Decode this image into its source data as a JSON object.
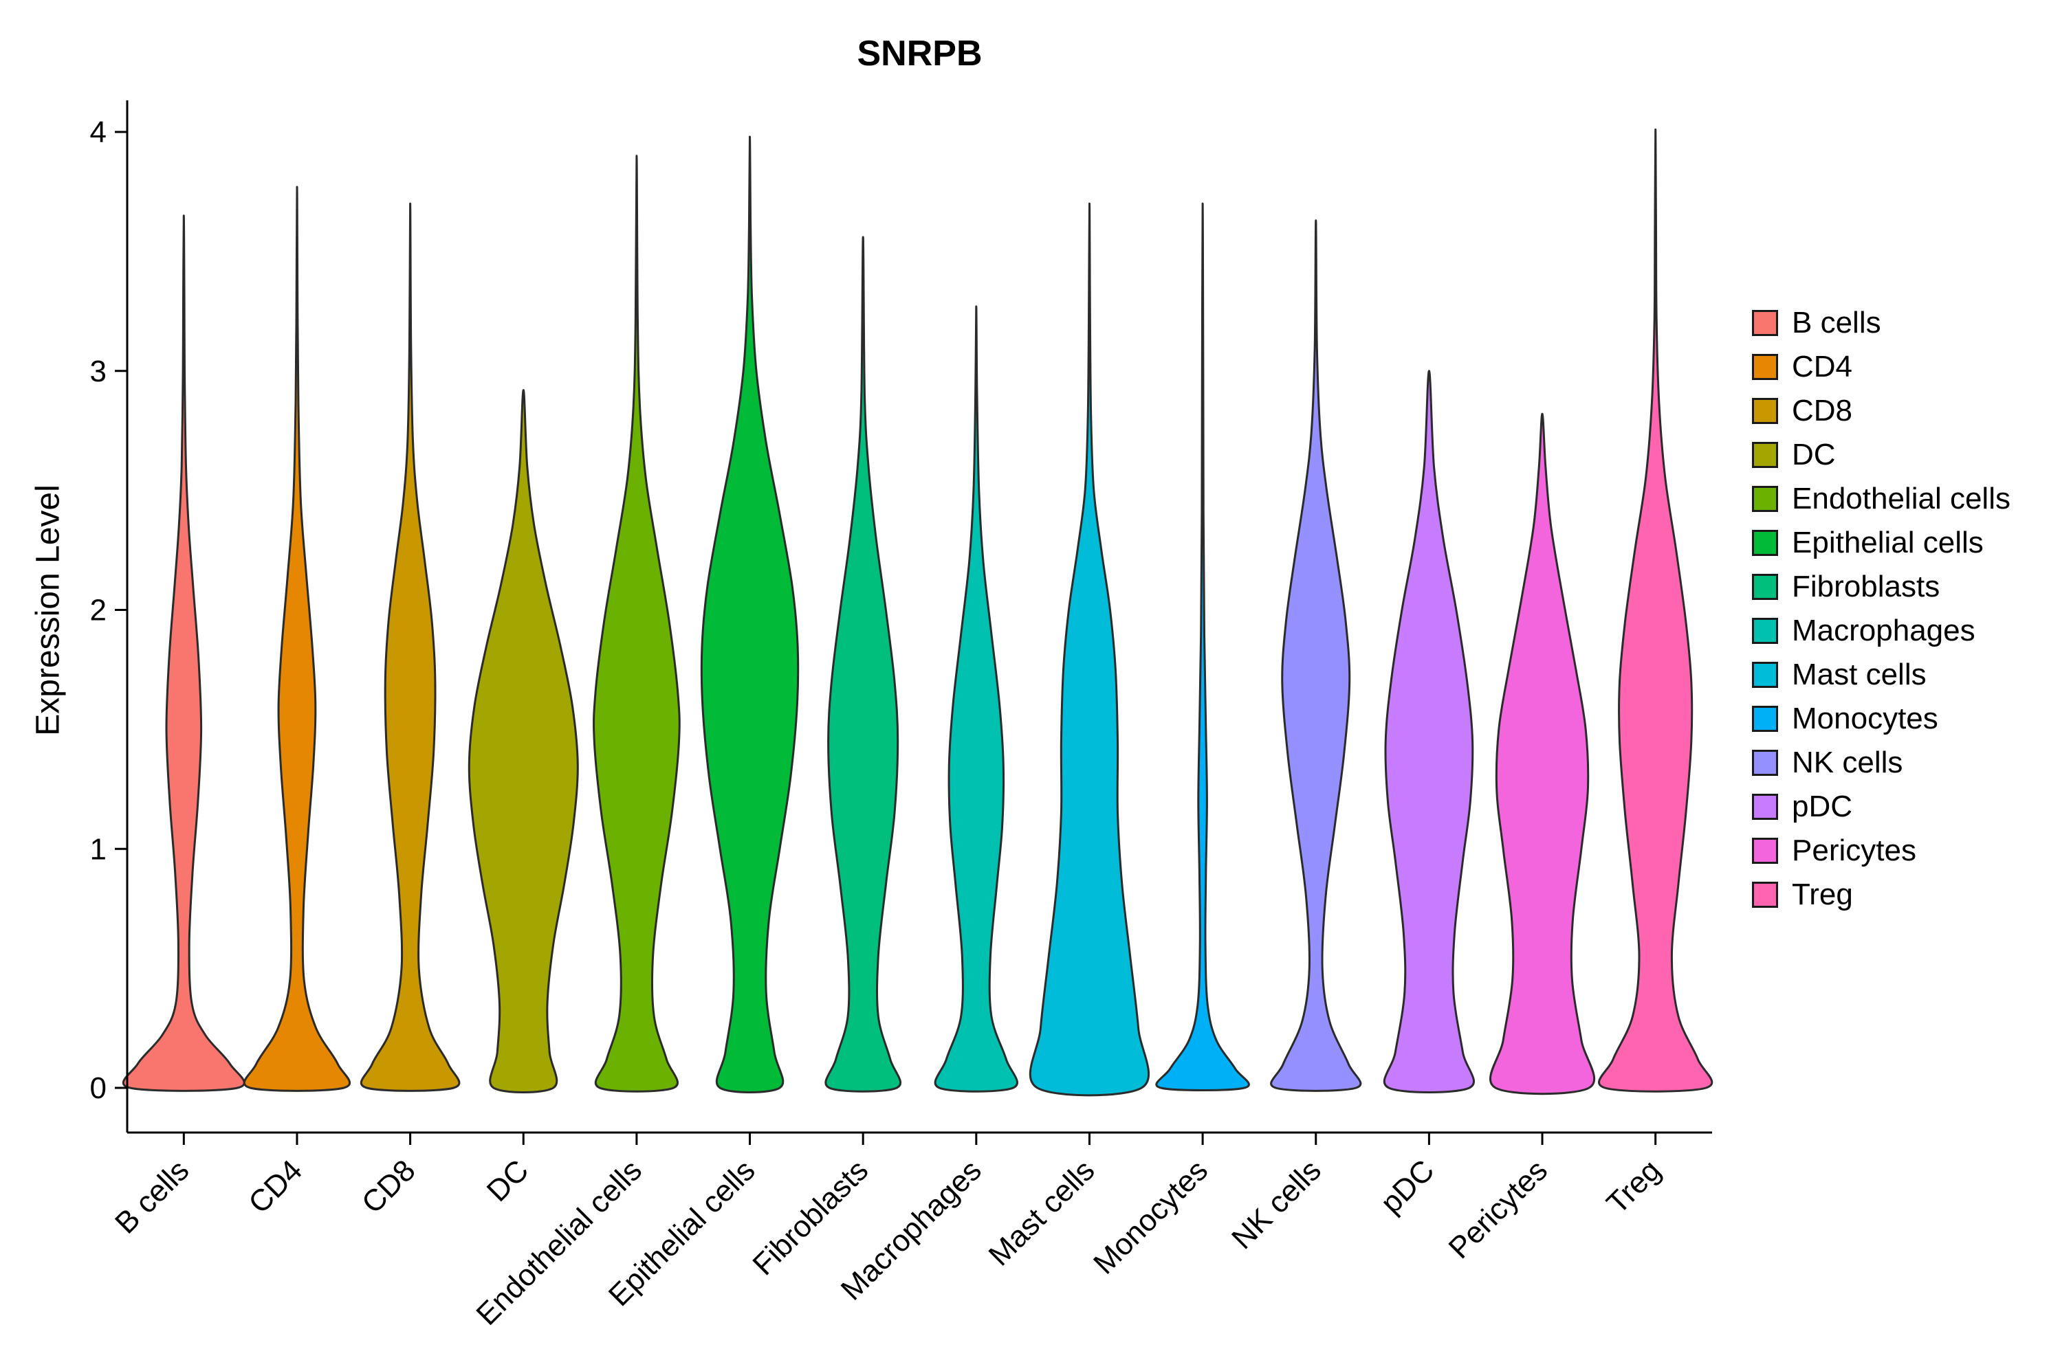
{
  "page": {
    "background": "#ffffff"
  },
  "chart_data": {
    "type": "violin",
    "title": "SNRPB",
    "xlabel": "",
    "ylabel": "Expression Level",
    "ylim": [
      0,
      4
    ],
    "yticks": [
      0,
      1,
      2,
      3,
      4
    ],
    "grid": false,
    "legend_position": "right",
    "outline_color": "#2b2b2b",
    "categories": [
      "B cells",
      "CD4",
      "CD8",
      "DC",
      "Endothelial cells",
      "Epithelial cells",
      "Fibroblasts",
      "Macrophages",
      "Mast cells",
      "Monocytes",
      "NK cells",
      "pDC",
      "Pericytes",
      "Treg"
    ],
    "colors": [
      "#F8766D",
      "#E58700",
      "#C99800",
      "#A3A500",
      "#6BB100",
      "#00BA38",
      "#00BF7D",
      "#00C0AF",
      "#00BCD8",
      "#00B0F6",
      "#9590FF",
      "#C77CFF",
      "#F265DC",
      "#FF64B0"
    ],
    "series": [
      {
        "name": "B cells",
        "color": "#F8766D",
        "max_expression": 3.65,
        "profile": [
          [
            0,
            0.99
          ],
          [
            0.1,
            0.85
          ],
          [
            0.22,
            0.4
          ],
          [
            0.35,
            0.15
          ],
          [
            0.6,
            0.1
          ],
          [
            0.9,
            0.16
          ],
          [
            1.2,
            0.26
          ],
          [
            1.5,
            0.32
          ],
          [
            1.8,
            0.27
          ],
          [
            2.1,
            0.17
          ],
          [
            2.35,
            0.09
          ],
          [
            2.6,
            0.04
          ],
          [
            3.0,
            0.015
          ],
          [
            3.3,
            0.01
          ],
          [
            3.65,
            0
          ]
        ]
      },
      {
        "name": "CD4",
        "color": "#E58700",
        "max_expression": 3.77,
        "profile": [
          [
            0,
            0.86
          ],
          [
            0.1,
            0.75
          ],
          [
            0.25,
            0.35
          ],
          [
            0.45,
            0.13
          ],
          [
            0.75,
            0.12
          ],
          [
            1.05,
            0.2
          ],
          [
            1.35,
            0.3
          ],
          [
            1.6,
            0.34
          ],
          [
            1.85,
            0.28
          ],
          [
            2.15,
            0.17
          ],
          [
            2.45,
            0.07
          ],
          [
            2.8,
            0.03
          ],
          [
            3.2,
            0.012
          ],
          [
            3.77,
            0
          ]
        ]
      },
      {
        "name": "CD8",
        "color": "#C99800",
        "max_expression": 3.7,
        "profile": [
          [
            0,
            0.8
          ],
          [
            0.1,
            0.7
          ],
          [
            0.25,
            0.35
          ],
          [
            0.5,
            0.16
          ],
          [
            0.8,
            0.2
          ],
          [
            1.1,
            0.32
          ],
          [
            1.4,
            0.43
          ],
          [
            1.7,
            0.46
          ],
          [
            1.95,
            0.4
          ],
          [
            2.2,
            0.27
          ],
          [
            2.45,
            0.13
          ],
          [
            2.7,
            0.05
          ],
          [
            3.1,
            0.015
          ],
          [
            3.7,
            0
          ]
        ]
      },
      {
        "name": "DC",
        "color": "#A3A500",
        "max_expression": 2.92,
        "profile": [
          [
            0,
            0.55
          ],
          [
            0.15,
            0.48
          ],
          [
            0.35,
            0.44
          ],
          [
            0.6,
            0.55
          ],
          [
            0.85,
            0.75
          ],
          [
            1.1,
            0.92
          ],
          [
            1.35,
            1.0
          ],
          [
            1.6,
            0.9
          ],
          [
            1.85,
            0.68
          ],
          [
            2.1,
            0.42
          ],
          [
            2.35,
            0.2
          ],
          [
            2.6,
            0.07
          ],
          [
            2.92,
            0
          ]
        ]
      },
      {
        "name": "Endothelial cells",
        "color": "#6BB100",
        "max_expression": 3.9,
        "profile": [
          [
            0,
            0.68
          ],
          [
            0.12,
            0.55
          ],
          [
            0.3,
            0.32
          ],
          [
            0.55,
            0.3
          ],
          [
            0.85,
            0.45
          ],
          [
            1.15,
            0.65
          ],
          [
            1.45,
            0.78
          ],
          [
            1.65,
            0.76
          ],
          [
            1.95,
            0.6
          ],
          [
            2.25,
            0.38
          ],
          [
            2.55,
            0.17
          ],
          [
            2.85,
            0.06
          ],
          [
            3.2,
            0.02
          ],
          [
            3.9,
            0
          ]
        ]
      },
      {
        "name": "Epithelial cells",
        "color": "#00BA38",
        "max_expression": 3.98,
        "profile": [
          [
            0,
            0.55
          ],
          [
            0.15,
            0.45
          ],
          [
            0.4,
            0.3
          ],
          [
            0.7,
            0.35
          ],
          [
            1.0,
            0.55
          ],
          [
            1.3,
            0.75
          ],
          [
            1.6,
            0.87
          ],
          [
            1.85,
            0.88
          ],
          [
            2.1,
            0.78
          ],
          [
            2.4,
            0.55
          ],
          [
            2.7,
            0.3
          ],
          [
            3.0,
            0.12
          ],
          [
            3.3,
            0.04
          ],
          [
            3.6,
            0.015
          ],
          [
            3.98,
            0
          ]
        ]
      },
      {
        "name": "Fibroblasts",
        "color": "#00BF7D",
        "max_expression": 3.56,
        "profile": [
          [
            0,
            0.62
          ],
          [
            0.12,
            0.5
          ],
          [
            0.3,
            0.28
          ],
          [
            0.55,
            0.28
          ],
          [
            0.85,
            0.42
          ],
          [
            1.15,
            0.58
          ],
          [
            1.45,
            0.64
          ],
          [
            1.7,
            0.58
          ],
          [
            2.0,
            0.42
          ],
          [
            2.3,
            0.24
          ],
          [
            2.6,
            0.1
          ],
          [
            2.9,
            0.03
          ],
          [
            3.56,
            0
          ]
        ]
      },
      {
        "name": "Macrophages",
        "color": "#00C0AF",
        "max_expression": 3.27,
        "profile": [
          [
            0,
            0.68
          ],
          [
            0.12,
            0.55
          ],
          [
            0.3,
            0.28
          ],
          [
            0.55,
            0.26
          ],
          [
            0.85,
            0.38
          ],
          [
            1.1,
            0.48
          ],
          [
            1.35,
            0.5
          ],
          [
            1.6,
            0.43
          ],
          [
            1.9,
            0.28
          ],
          [
            2.2,
            0.13
          ],
          [
            2.5,
            0.05
          ],
          [
            2.9,
            0.015
          ],
          [
            3.27,
            0
          ]
        ]
      },
      {
        "name": "Mast cells",
        "color": "#00BCD8",
        "max_expression": 3.7,
        "profile": [
          [
            0,
            0.96
          ],
          [
            0.25,
            0.9
          ],
          [
            0.55,
            0.75
          ],
          [
            0.85,
            0.6
          ],
          [
            1.15,
            0.52
          ],
          [
            1.45,
            0.52
          ],
          [
            1.75,
            0.48
          ],
          [
            2.0,
            0.38
          ],
          [
            2.25,
            0.22
          ],
          [
            2.5,
            0.08
          ],
          [
            2.8,
            0.03
          ],
          [
            3.2,
            0.012
          ],
          [
            3.7,
            0
          ]
        ]
      },
      {
        "name": "Monocytes",
        "color": "#00B0F6",
        "max_expression": 3.7,
        "profile": [
          [
            0,
            0.77
          ],
          [
            0.08,
            0.6
          ],
          [
            0.2,
            0.25
          ],
          [
            0.35,
            0.09
          ],
          [
            0.6,
            0.05
          ],
          [
            0.9,
            0.06
          ],
          [
            1.2,
            0.08
          ],
          [
            1.5,
            0.06
          ],
          [
            1.9,
            0.03
          ],
          [
            2.4,
            0.015
          ],
          [
            3.0,
            0.01
          ],
          [
            3.7,
            0
          ]
        ]
      },
      {
        "name": "NK cells",
        "color": "#9590FF",
        "max_expression": 3.63,
        "profile": [
          [
            0,
            0.74
          ],
          [
            0.1,
            0.6
          ],
          [
            0.28,
            0.25
          ],
          [
            0.5,
            0.12
          ],
          [
            0.8,
            0.18
          ],
          [
            1.1,
            0.35
          ],
          [
            1.4,
            0.52
          ],
          [
            1.7,
            0.62
          ],
          [
            1.95,
            0.55
          ],
          [
            2.2,
            0.4
          ],
          [
            2.5,
            0.2
          ],
          [
            2.75,
            0.08
          ],
          [
            3.1,
            0.02
          ],
          [
            3.63,
            0
          ]
        ]
      },
      {
        "name": "pDC",
        "color": "#C77CFF",
        "max_expression": 3.0,
        "profile": [
          [
            0,
            0.74
          ],
          [
            0.15,
            0.62
          ],
          [
            0.4,
            0.45
          ],
          [
            0.65,
            0.47
          ],
          [
            0.95,
            0.62
          ],
          [
            1.2,
            0.76
          ],
          [
            1.45,
            0.8
          ],
          [
            1.7,
            0.7
          ],
          [
            2.0,
            0.5
          ],
          [
            2.3,
            0.26
          ],
          [
            2.6,
            0.09
          ],
          [
            3.0,
            0
          ]
        ]
      },
      {
        "name": "Pericytes",
        "color": "#F265DC",
        "max_expression": 2.82,
        "profile": [
          [
            0,
            0.86
          ],
          [
            0.2,
            0.72
          ],
          [
            0.45,
            0.55
          ],
          [
            0.7,
            0.56
          ],
          [
            1.0,
            0.72
          ],
          [
            1.25,
            0.84
          ],
          [
            1.5,
            0.8
          ],
          [
            1.75,
            0.62
          ],
          [
            2.05,
            0.38
          ],
          [
            2.35,
            0.16
          ],
          [
            2.6,
            0.06
          ],
          [
            2.82,
            0
          ]
        ]
      },
      {
        "name": "Treg",
        "color": "#FF64B0",
        "max_expression": 4.01,
        "profile": [
          [
            0,
            0.93
          ],
          [
            0.12,
            0.78
          ],
          [
            0.3,
            0.42
          ],
          [
            0.55,
            0.3
          ],
          [
            0.85,
            0.42
          ],
          [
            1.15,
            0.56
          ],
          [
            1.45,
            0.66
          ],
          [
            1.7,
            0.66
          ],
          [
            1.95,
            0.56
          ],
          [
            2.25,
            0.38
          ],
          [
            2.55,
            0.18
          ],
          [
            2.85,
            0.07
          ],
          [
            3.2,
            0.02
          ],
          [
            3.6,
            0.01
          ],
          [
            4.01,
            0
          ]
        ]
      }
    ]
  }
}
